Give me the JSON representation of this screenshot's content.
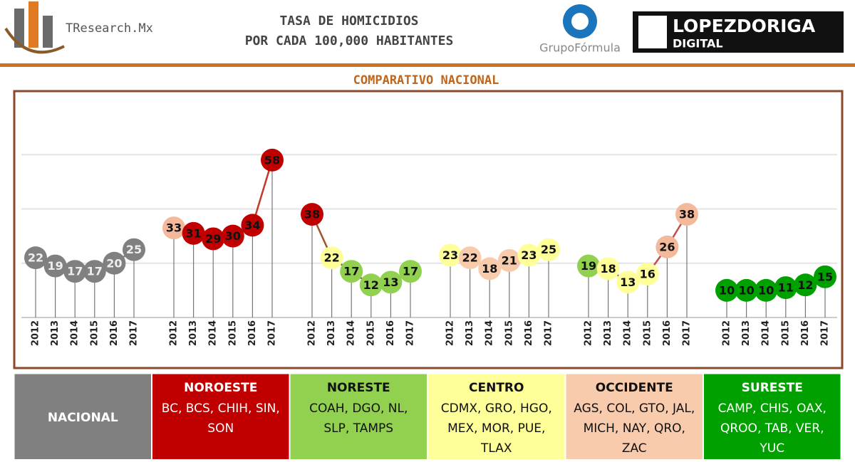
{
  "header": {
    "brand": "TResearch.Mx",
    "title_lines": [
      "TASA DE HOMICIDIOS",
      "POR CADA 100,000 HABITANTES"
    ],
    "partner": "GrupoFórmula",
    "media_name": "LOPEZDORIGA",
    "media_sub": "DIGITAL"
  },
  "chart_data": {
    "type": "line",
    "title": "COMPARATIVO NACIONAL",
    "categories": [
      "2012",
      "2013",
      "2014",
      "2015",
      "2016",
      "2017"
    ],
    "ylim": [
      0,
      80
    ],
    "yticks": [
      0,
      20,
      40,
      60
    ],
    "grid": true,
    "series": [
      {
        "name": "NACIONAL",
        "states": "",
        "color": "#808080",
        "line_color": "#808080",
        "values": [
          22,
          19,
          17,
          17,
          20,
          25
        ],
        "colors": [
          "#808080",
          "#808080",
          "#808080",
          "#808080",
          "#808080",
          "#808080"
        ]
      },
      {
        "name": "NOROESTE",
        "states": "BC, BCS, CHIH, SIN, SON",
        "color": "#c00000",
        "line_color": "#c0392b",
        "values": [
          33,
          31,
          29,
          30,
          34,
          58
        ],
        "colors": [
          "#f4b89a",
          "#c00000",
          "#c00000",
          "#c00000",
          "#c00000",
          "#c00000"
        ]
      },
      {
        "name": "NORESTE",
        "states": "COAH, DGO, NL, SLP, TAMPS",
        "color": "#92d050",
        "line_color": "#a0522d",
        "values": [
          38,
          22,
          17,
          12,
          13,
          17
        ],
        "colors": [
          "#c00000",
          "#ffff99",
          "#92d050",
          "#92d050",
          "#92d050",
          "#92d050"
        ]
      },
      {
        "name": "CENTRO",
        "states": "CDMX, GRO, HGO, MEX, MOR, PUE, TLAX",
        "color": "#ffff99",
        "line_color": "#d9b38c",
        "values": [
          23,
          22,
          18,
          21,
          23,
          25
        ],
        "colors": [
          "#ffff99",
          "#f8cbad",
          "#f8cbad",
          "#f8cbad",
          "#ffff99",
          "#ffff99"
        ]
      },
      {
        "name": "OCCIDENTE",
        "states": "AGS, COL, GTO, JAL, MICH, NAY, QRO, ZAC",
        "color": "#f8cbad",
        "line_color": "#c0504d",
        "values": [
          19,
          18,
          13,
          16,
          26,
          38
        ],
        "colors": [
          "#92d050",
          "#ffff99",
          "#ffff99",
          "#ffff99",
          "#f4b89a",
          "#f4b89a"
        ]
      },
      {
        "name": "SURESTE",
        "states": "CAMP, CHIS, OAX, QROO, TAB, VER, YUC",
        "color": "#00a000",
        "line_color": "#00a000",
        "values": [
          10,
          10,
          10,
          11,
          12,
          15
        ],
        "colors": [
          "#00a000",
          "#00a000",
          "#00a000",
          "#00a000",
          "#00a000",
          "#00a000"
        ]
      }
    ]
  }
}
